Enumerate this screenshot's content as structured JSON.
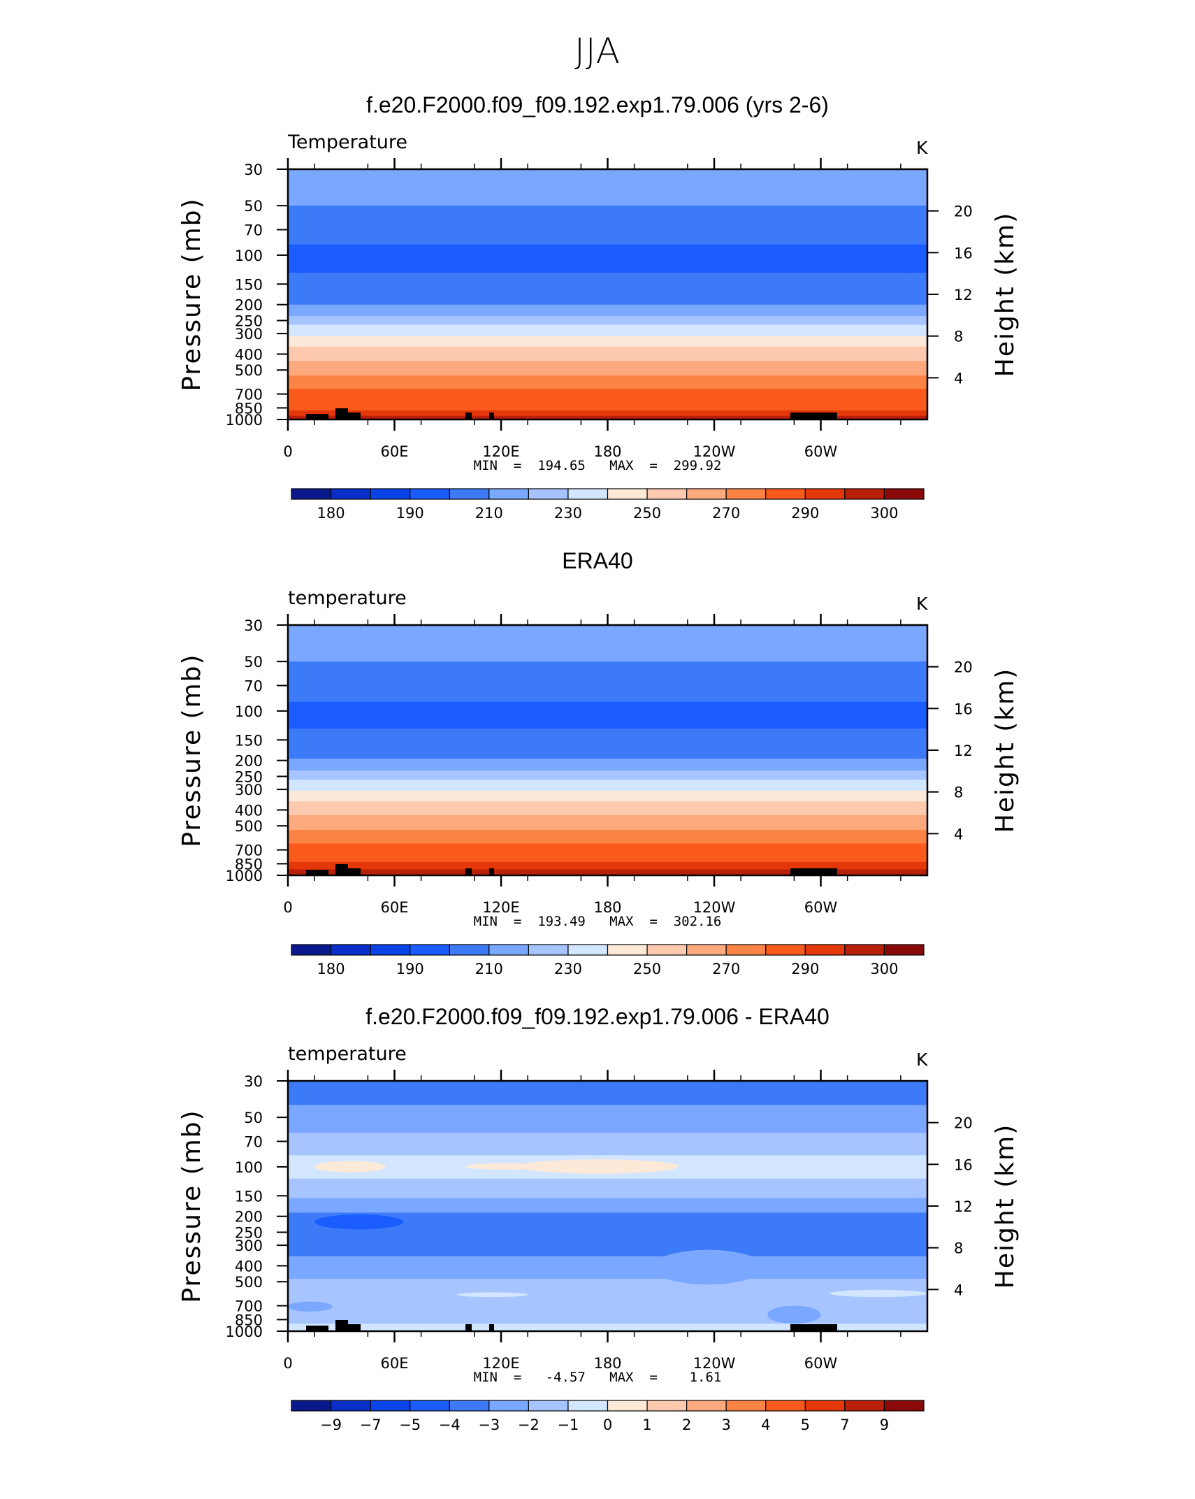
{
  "figure": {
    "title": "JJA"
  },
  "chart_data": [
    {
      "type": "heatmap",
      "title": "f.e20.F2000.f09_f09.192.exp1.79.006 (yrs 2-6)",
      "field_label": "Temperature",
      "units": "K",
      "ylabel": "Pressure (mb)",
      "y2label": "Height (km)",
      "x_ticks": [
        "0",
        "60E",
        "120E",
        "180",
        "120W",
        "60W"
      ],
      "x_range": [
        0,
        360
      ],
      "y_ticks": [
        "30",
        "50",
        "70",
        "100",
        "150",
        "200",
        "250",
        "300",
        "400",
        "500",
        "700",
        "850",
        "1000"
      ],
      "y_range": [
        1000,
        30
      ],
      "y_scale": "log",
      "y2_ticks": [
        "20",
        "16",
        "12",
        "8",
        "4"
      ],
      "stats": {
        "min_label": "MIN",
        "min": "194.65",
        "max_label": "MAX",
        "max": "299.92"
      },
      "colorbar": {
        "tick_labels": [
          "180",
          "190",
          "210",
          "230",
          "250",
          "270",
          "290",
          "300"
        ],
        "colors": [
          "#0a1a8c",
          "#0a2fc8",
          "#0a44e6",
          "#1a5cff",
          "#3d7af8",
          "#7aa7ff",
          "#a6c4ff",
          "#d2e6ff",
          "#fde9d8",
          "#fdcab0",
          "#fca97d",
          "#fb8444",
          "#fa5a1c",
          "#e4380a",
          "#b8200a",
          "#8a0a0a"
        ]
      },
      "profile": [
        {
          "p": 30,
          "c": "#7aa7ff"
        },
        {
          "p": 50,
          "c": "#3d7af8"
        },
        {
          "p": 86,
          "c": "#1a5cff"
        },
        {
          "p": 128,
          "c": "#3d7af8"
        },
        {
          "p": 200,
          "c": "#7aa7ff"
        },
        {
          "p": 235,
          "c": "#a6c4ff"
        },
        {
          "p": 265,
          "c": "#d2e6ff"
        },
        {
          "p": 310,
          "c": "#fde9d8"
        },
        {
          "p": 360,
          "c": "#fdcab0"
        },
        {
          "p": 440,
          "c": "#fca97d"
        },
        {
          "p": 540,
          "c": "#fb8444"
        },
        {
          "p": 650,
          "c": "#fa5a1c"
        },
        {
          "p": 880,
          "c": "#e4380a"
        },
        {
          "p": 950,
          "c": "#b8200a"
        }
      ]
    },
    {
      "type": "heatmap",
      "title": "ERA40",
      "field_label": "temperature",
      "units": "K",
      "ylabel": "Pressure (mb)",
      "y2label": "Height (km)",
      "x_ticks": [
        "0",
        "60E",
        "120E",
        "180",
        "120W",
        "60W"
      ],
      "x_range": [
        0,
        360
      ],
      "y_ticks": [
        "30",
        "50",
        "70",
        "100",
        "150",
        "200",
        "250",
        "300",
        "400",
        "500",
        "700",
        "850",
        "1000"
      ],
      "y_range": [
        1000,
        30
      ],
      "y_scale": "log",
      "y2_ticks": [
        "20",
        "16",
        "12",
        "8",
        "4"
      ],
      "stats": {
        "min_label": "MIN",
        "min": "193.49",
        "max_label": "MAX",
        "max": "302.16"
      },
      "colorbar": {
        "tick_labels": [
          "180",
          "190",
          "210",
          "230",
          "250",
          "270",
          "290",
          "300"
        ],
        "colors": [
          "#0a1a8c",
          "#0a2fc8",
          "#0a44e6",
          "#1a5cff",
          "#3d7af8",
          "#7aa7ff",
          "#a6c4ff",
          "#d2e6ff",
          "#fde9d8",
          "#fdcab0",
          "#fca97d",
          "#fb8444",
          "#fa5a1c",
          "#e4380a",
          "#b8200a",
          "#8a0a0a"
        ]
      },
      "profile": [
        {
          "p": 30,
          "c": "#7aa7ff"
        },
        {
          "p": 50,
          "c": "#3d7af8"
        },
        {
          "p": 88,
          "c": "#1a5cff"
        },
        {
          "p": 128,
          "c": "#3d7af8"
        },
        {
          "p": 195,
          "c": "#7aa7ff"
        },
        {
          "p": 230,
          "c": "#a6c4ff"
        },
        {
          "p": 262,
          "c": "#d2e6ff"
        },
        {
          "p": 305,
          "c": "#fde9d8"
        },
        {
          "p": 355,
          "c": "#fdcab0"
        },
        {
          "p": 430,
          "c": "#fca97d"
        },
        {
          "p": 530,
          "c": "#fb8444"
        },
        {
          "p": 640,
          "c": "#fa5a1c"
        },
        {
          "p": 830,
          "c": "#e4380a"
        },
        {
          "p": 920,
          "c": "#b8200a"
        }
      ]
    },
    {
      "type": "heatmap",
      "title": "f.e20.F2000.f09_f09.192.exp1.79.006 - ERA40",
      "field_label": "temperature",
      "units": "K",
      "ylabel": "Pressure (mb)",
      "y2label": "Height (km)",
      "x_ticks": [
        "0",
        "60E",
        "120E",
        "180",
        "120W",
        "60W"
      ],
      "x_range": [
        0,
        360
      ],
      "y_ticks": [
        "30",
        "50",
        "70",
        "100",
        "150",
        "200",
        "250",
        "300",
        "400",
        "500",
        "700",
        "850",
        "1000"
      ],
      "y_range": [
        1000,
        30
      ],
      "y_scale": "log",
      "y2_ticks": [
        "20",
        "16",
        "12",
        "8",
        "4"
      ],
      "stats": {
        "min_label": "MIN",
        "min": "-4.57",
        "max_label": "MAX",
        "max": "1.61"
      },
      "colorbar": {
        "tick_labels": [
          "-9",
          "-7",
          "-5",
          "-4",
          "-3",
          "-2",
          "-1",
          "0",
          "1",
          "2",
          "3",
          "4",
          "5",
          "7",
          "9"
        ],
        "colors": [
          "#0a1a8c",
          "#0a2fc8",
          "#0a44e6",
          "#1a5cff",
          "#3d7af8",
          "#7aa7ff",
          "#a6c4ff",
          "#d2e6ff",
          "#fde9d8",
          "#fdcab0",
          "#fca97d",
          "#fb8444",
          "#fa5a1c",
          "#e4380a",
          "#b8200a",
          "#8a0a0a"
        ]
      },
      "profile": [
        {
          "p": 30,
          "c": "#3d7af8"
        },
        {
          "p": 42,
          "c": "#7aa7ff"
        },
        {
          "p": 62,
          "c": "#a6c4ff"
        },
        {
          "p": 85,
          "c": "#d2e6ff"
        },
        {
          "p": 118,
          "c": "#a6c4ff"
        },
        {
          "p": 155,
          "c": "#7aa7ff"
        },
        {
          "p": 190,
          "c": "#3d7af8"
        },
        {
          "p": 350,
          "c": "#7aa7ff"
        },
        {
          "p": 480,
          "c": "#a6c4ff"
        },
        {
          "p": 900,
          "c": "#d2e6ff"
        }
      ],
      "features": [
        {
          "lon": [
            15,
            55
          ],
          "p": [
            92,
            108
          ],
          "c": "#fde9d8"
        },
        {
          "lon": [
            100,
            145
          ],
          "p": [
            95,
            104
          ],
          "c": "#fde9d8"
        },
        {
          "lon": [
            130,
            220
          ],
          "p": [
            90,
            110
          ],
          "c": "#fde9d8"
        },
        {
          "lon": [
            15,
            65
          ],
          "p": [
            195,
            240
          ],
          "c": "#1a5cff"
        },
        {
          "lon": [
            205,
            268
          ],
          "p": [
            320,
            520
          ],
          "c": "#7aa7ff"
        },
        {
          "lon": [
            0,
            25
          ],
          "p": [
            660,
            760
          ],
          "c": "#7aa7ff"
        },
        {
          "lon": [
            95,
            135
          ],
          "p": [
            580,
            620
          ],
          "c": "#d2e6ff"
        },
        {
          "lon": [
            270,
            300
          ],
          "p": [
            700,
            900
          ],
          "c": "#7aa7ff"
        },
        {
          "lon": [
            305,
            360
          ],
          "p": [
            560,
            620
          ],
          "c": "#d2e6ff"
        }
      ]
    }
  ]
}
